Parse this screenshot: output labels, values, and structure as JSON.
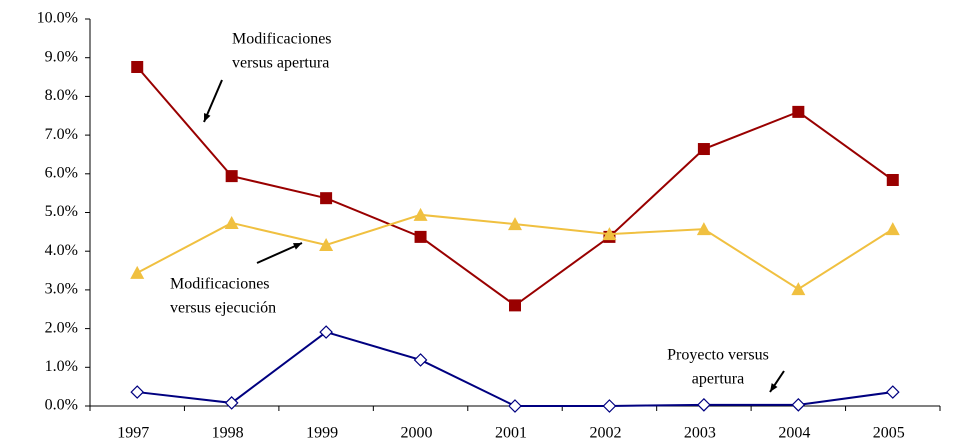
{
  "chart_data": {
    "type": "line",
    "categories": [
      "1997",
      "1998",
      "1999",
      "2000",
      "2001",
      "2002",
      "2003",
      "2004",
      "2005"
    ],
    "ylim": [
      0,
      10
    ],
    "yticks": [
      {
        "value": 0,
        "label": "0.0%"
      },
      {
        "value": 1,
        "label": "1.0%"
      },
      {
        "value": 2,
        "label": "2.0%"
      },
      {
        "value": 3,
        "label": "3.0%"
      },
      {
        "value": 4,
        "label": "4.0%"
      },
      {
        "value": 5,
        "label": "5.0%"
      },
      {
        "value": 6,
        "label": "6.0%"
      },
      {
        "value": 7,
        "label": "7.0%"
      },
      {
        "value": 8,
        "label": "8.0%"
      },
      {
        "value": 9,
        "label": "9.0%"
      },
      {
        "value": 10,
        "label": "10.0%"
      }
    ],
    "series": [
      {
        "label_lines": [
          "Modificaciones",
          "versus apertura"
        ],
        "color": "#990000",
        "marker": "square",
        "values": [
          8.76,
          5.94,
          5.37,
          4.37,
          2.6,
          4.37,
          6.64,
          7.6,
          5.84
        ]
      },
      {
        "label_lines": [
          "Modificaciones",
          "versus ejecución"
        ],
        "color": "#f0c040",
        "marker": "triangle",
        "values": [
          3.44,
          4.73,
          4.16,
          4.94,
          4.7,
          4.44,
          4.57,
          3.02,
          4.57
        ]
      },
      {
        "label_lines": [
          "Proyecto versus",
          "apertura"
        ],
        "color": "#000080",
        "marker": "diamond",
        "values": [
          0.36,
          0.08,
          1.91,
          1.19,
          0,
          0,
          0.03,
          0.03,
          0.36
        ]
      }
    ]
  }
}
